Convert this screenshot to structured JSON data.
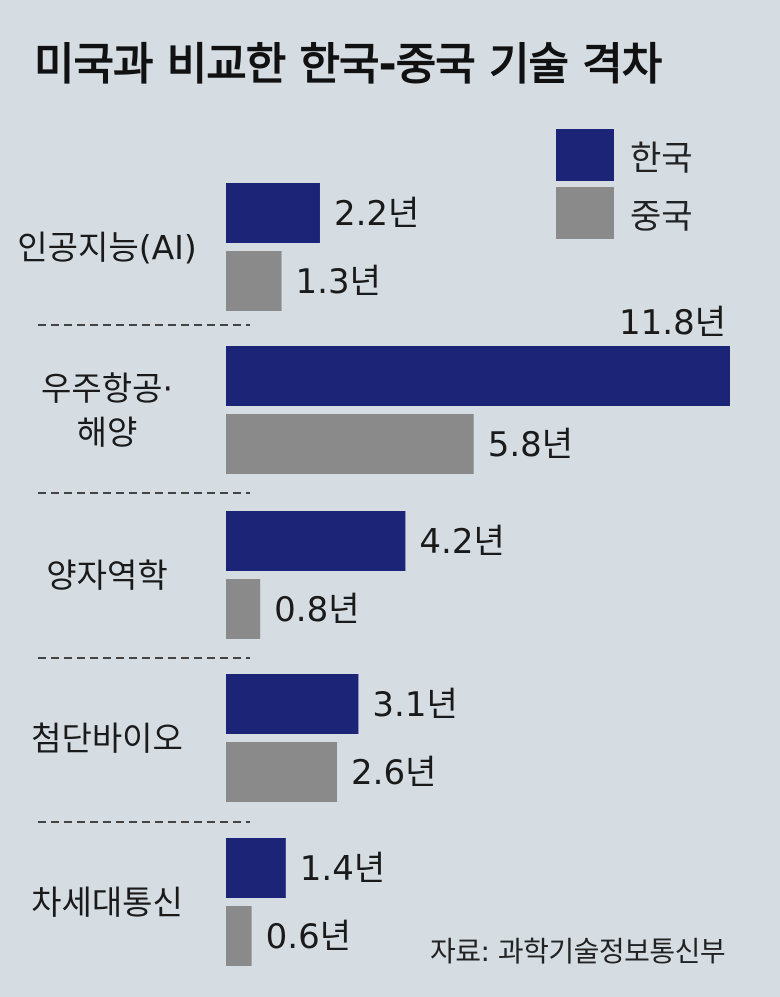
{
  "title": "미국과 비교한 한국-중국 기술 격차",
  "source": "자료: 과학기술정보통신부",
  "colors": {
    "korea": "#1c2478",
    "china": "#8a8a8a",
    "background": "#d5dde3"
  },
  "chart_data": {
    "type": "bar",
    "orientation": "horizontal",
    "title": "미국과 비교한 한국-중국 기술 격차",
    "unit": "년",
    "legend_position": "top-right",
    "categories": [
      [
        "인공지능(AI)"
      ],
      [
        "우주항공·",
        "해양"
      ],
      [
        "양자역학"
      ],
      [
        "첨단바이오"
      ],
      [
        "차세대통신"
      ]
    ],
    "series": [
      {
        "name": "한국",
        "values": [
          2.2,
          11.8,
          4.2,
          3.1,
          1.4
        ],
        "labels": [
          "2.2년",
          "11.8년",
          "4.2년",
          "3.1년",
          "1.4년"
        ]
      },
      {
        "name": "중국",
        "values": [
          1.3,
          5.8,
          0.8,
          2.6,
          0.6
        ],
        "labels": [
          "1.3년",
          "5.8년",
          "0.8년",
          "2.6년",
          "0.6년"
        ]
      }
    ],
    "xlim": [
      0,
      11.8
    ],
    "grid": false
  }
}
